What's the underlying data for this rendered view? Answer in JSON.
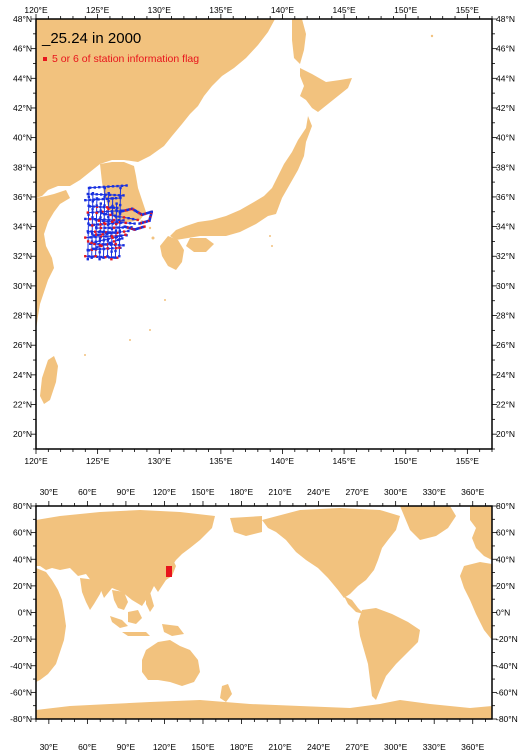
{
  "top_map": {
    "title": "_25.24 in 2000",
    "legend_label": "5 or 6 of station information flag",
    "legend_color": "#e8141c",
    "track_color": "#1830e0",
    "lon_ticks": [
      "120°E",
      "125°E",
      "130°E",
      "135°E",
      "140°E",
      "145°E",
      "150°E",
      "155°E"
    ],
    "lat_ticks": [
      "20°N",
      "22°N",
      "24°N",
      "26°N",
      "28°N",
      "30°N",
      "32°N",
      "34°N",
      "36°N",
      "38°N",
      "40°N",
      "42°N",
      "44°N",
      "46°N",
      "48°N"
    ],
    "lon_range": [
      120,
      157
    ],
    "lat_range": [
      19,
      48
    ]
  },
  "bottom_map": {
    "lon_ticks": [
      "30°E",
      "60°E",
      "90°E",
      "120°E",
      "150°E",
      "180°E",
      "210°E",
      "240°E",
      "270°E",
      "300°E",
      "330°E",
      "360°E"
    ],
    "lat_ticks": [
      "80°N",
      "60°N",
      "40°N",
      "20°N",
      "0°N",
      "-20°N",
      "-40°N",
      "-60°N",
      "-80°N"
    ]
  },
  "colors": {
    "land": "#f2c27e",
    "water": "#ffffff",
    "frame": "#000000"
  }
}
